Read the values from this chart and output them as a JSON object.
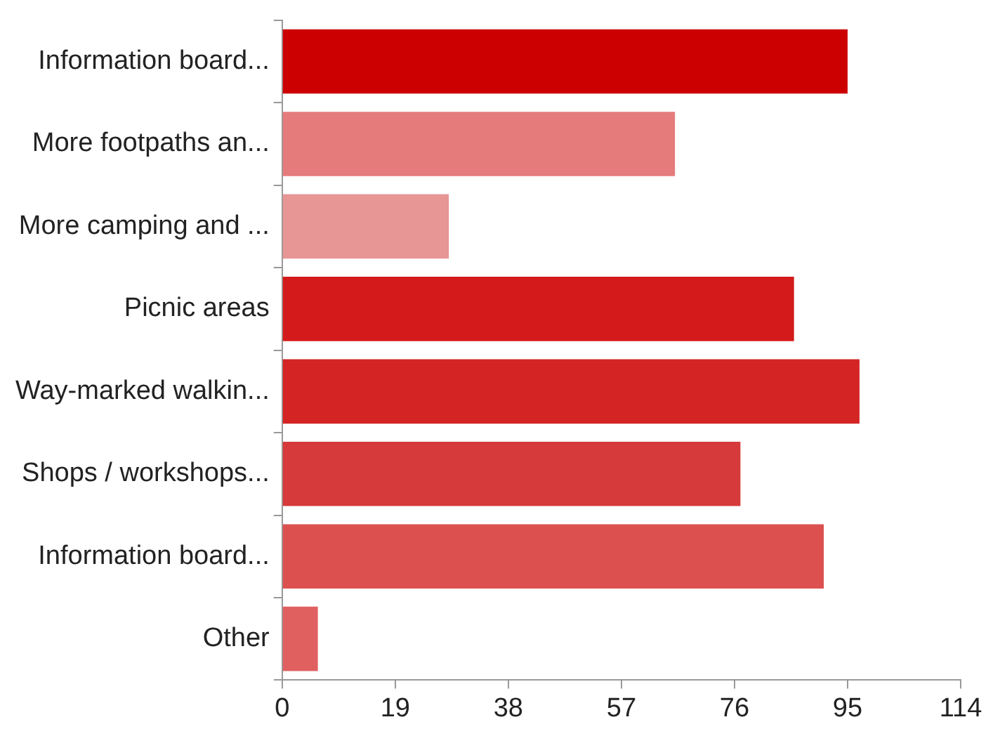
{
  "chart_data": {
    "type": "bar",
    "orientation": "horizontal",
    "categories": [
      "Information board...",
      "More footpaths an...",
      "More camping and ...",
      "Picnic areas",
      "Way-marked walkin...",
      "Shops / workshops...",
      "Information board...",
      "Other"
    ],
    "values": [
      95,
      66,
      28,
      86,
      97,
      77,
      91,
      6
    ],
    "colors": [
      "#cc0000",
      "#e57b7b",
      "#e89595",
      "#d41a1a",
      "#d42424",
      "#d63a3a",
      "#dc5050",
      "#e06060"
    ],
    "xlim": [
      0,
      114
    ],
    "xticks": [
      0,
      19,
      38,
      57,
      76,
      95,
      114
    ],
    "grid": false,
    "legend": false
  }
}
